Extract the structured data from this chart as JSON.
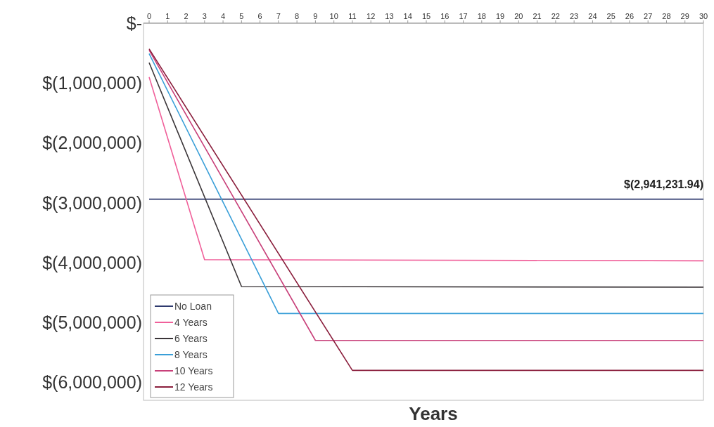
{
  "chart_data": {
    "type": "line",
    "xlabel": "Years",
    "xlim": [
      0,
      30
    ],
    "xticks": [
      0,
      1,
      2,
      3,
      4,
      5,
      6,
      7,
      8,
      9,
      10,
      11,
      12,
      13,
      14,
      15,
      16,
      17,
      18,
      19,
      20,
      21,
      22,
      23,
      24,
      25,
      26,
      27,
      28,
      29,
      30
    ],
    "ylim": [
      -6300000,
      0
    ],
    "yticks": [
      {
        "value": 0,
        "label": "$-"
      },
      {
        "value": -1000000,
        "label": "$(1,000,000)"
      },
      {
        "value": -2000000,
        "label": "$(2,000,000)"
      },
      {
        "value": -3000000,
        "label": "$(3,000,000)"
      },
      {
        "value": -4000000,
        "label": "$(4,000,000)"
      },
      {
        "value": -5000000,
        "label": "$(5,000,000)"
      },
      {
        "value": -6000000,
        "label": "$(6,000,000)"
      }
    ],
    "grid": false,
    "legend": "bottom left",
    "line_style": "solid",
    "annotations": [
      {
        "text": "$(2,941,231.94)",
        "x": 30,
        "y": -2941231.94
      }
    ],
    "series": [
      {
        "name": "No Loan",
        "color": "#2e3a6e",
        "x": [
          0,
          30
        ],
        "values": [
          -2940000,
          -2940000
        ]
      },
      {
        "name": "4 Years",
        "color": "#f0609a",
        "x": [
          0,
          3,
          30
        ],
        "values": [
          -900000,
          -3950000,
          -3970000
        ]
      },
      {
        "name": "6 Years",
        "color": "#3a3538",
        "x": [
          0,
          5,
          30
        ],
        "values": [
          -660000,
          -4400000,
          -4410000
        ]
      },
      {
        "name": "8 Years",
        "color": "#3a9fd8",
        "x": [
          0,
          7,
          30
        ],
        "values": [
          -510000,
          -4850000,
          -4850000
        ]
      },
      {
        "name": "10 Years",
        "color": "#c8407a",
        "x": [
          0,
          9,
          30
        ],
        "values": [
          -450000,
          -5300000,
          -5300000
        ]
      },
      {
        "name": "12 Years",
        "color": "#8a1e3c",
        "x": [
          0,
          11,
          30
        ],
        "values": [
          -430000,
          -5800000,
          -5800000
        ]
      }
    ]
  }
}
